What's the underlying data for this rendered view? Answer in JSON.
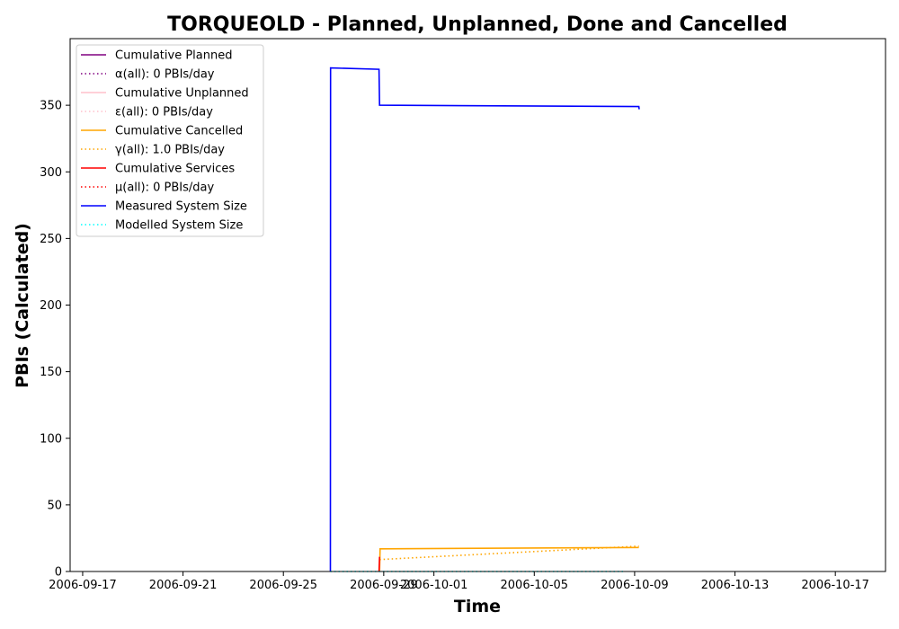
{
  "chart_data": {
    "type": "line",
    "title": "TORQUEOLD - Planned, Unplanned, Done  and Cancelled",
    "xlabel": "Time",
    "ylabel": "PBIs (Calculated)",
    "xlim": [
      "2006-09-16T12:00",
      "2006-10-19T00:00"
    ],
    "ylim": [
      0,
      400
    ],
    "x_ticks": [
      "2006-09-17",
      "2006-09-21",
      "2006-09-25",
      "2006-09-29",
      "2006-10-01",
      "2006-10-05",
      "2006-10-09",
      "2006-10-13",
      "2006-10-17"
    ],
    "y_ticks": [
      0,
      50,
      100,
      150,
      200,
      250,
      300,
      350
    ],
    "grid": false,
    "legend_position": "top-left",
    "series": [
      {
        "name": "Cumulative Planned",
        "color": "#800080",
        "style": "solid",
        "points": []
      },
      {
        "name": "α(all): 0 PBIs/day",
        "color": "#800080",
        "style": "dotted",
        "points": []
      },
      {
        "name": "Cumulative Unplanned",
        "color": "#ffc0cb",
        "style": "solid",
        "points": []
      },
      {
        "name": "ε(all): 0 PBIs/day",
        "color": "#ffc0cb",
        "style": "dotted",
        "points": []
      },
      {
        "name": "Cumulative Cancelled",
        "color": "#ffa500",
        "style": "solid",
        "points": [
          {
            "x": "2006-09-28T20:00",
            "y": 0
          },
          {
            "x": "2006-09-28T20:30",
            "y": 17
          },
          {
            "x": "2006-10-09T04:00",
            "y": 18
          }
        ]
      },
      {
        "name": "γ(all): 1.0 PBIs/day",
        "color": "#ffa500",
        "style": "dotted",
        "points": [
          {
            "x": "2006-09-28T20:00",
            "y": 9
          },
          {
            "x": "2006-10-09T04:00",
            "y": 19
          }
        ]
      },
      {
        "name": "Cumulative Services",
        "color": "#ff0000",
        "style": "solid",
        "points": [
          {
            "x": "2006-09-28T19:30",
            "y": 0
          },
          {
            "x": "2006-09-28T20:00",
            "y": 11
          }
        ]
      },
      {
        "name": "μ(all): 0 PBIs/day",
        "color": "#ff0000",
        "style": "dotted",
        "points": []
      },
      {
        "name": "Measured System Size",
        "color": "#0000ff",
        "style": "solid",
        "points": [
          {
            "x": "2006-09-26T21:00",
            "y": 0
          },
          {
            "x": "2006-09-26T21:10",
            "y": 378
          },
          {
            "x": "2006-09-28T19:30",
            "y": 377
          },
          {
            "x": "2006-09-28T20:00",
            "y": 350
          },
          {
            "x": "2006-10-09T04:00",
            "y": 349
          },
          {
            "x": "2006-10-09T04:20",
            "y": 347
          }
        ]
      },
      {
        "name": "Modelled System Size",
        "color": "#00ffff",
        "style": "dotted",
        "points": [
          {
            "x": "2006-09-26T21:00",
            "y": 0
          },
          {
            "x": "2006-10-08T15:00",
            "y": 0
          }
        ]
      }
    ]
  }
}
